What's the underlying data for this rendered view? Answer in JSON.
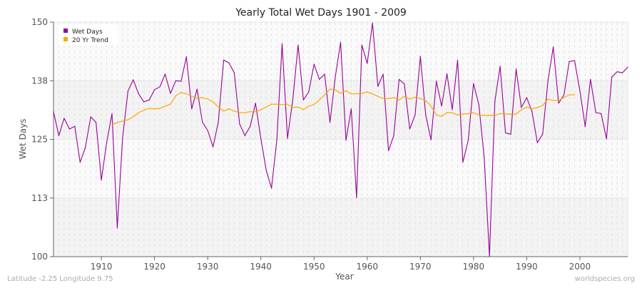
{
  "chart_data": {
    "type": "line",
    "title": "Yearly Total Wet Days 1901 - 2009",
    "xlabel": "Year",
    "ylabel": "Wet Days",
    "xlim": [
      1901,
      2009
    ],
    "ylim": [
      100,
      150
    ],
    "x_ticks": [
      1910,
      1920,
      1930,
      1940,
      1950,
      1960,
      1970,
      1980,
      1990,
      2000
    ],
    "y_ticks": [
      {
        "value": 100,
        "label": "100"
      },
      {
        "value": 112.5,
        "label": "113"
      },
      {
        "value": 125,
        "label": "125"
      },
      {
        "value": 137.5,
        "label": "138"
      },
      {
        "value": 150,
        "label": "150"
      }
    ],
    "grid": true,
    "legend": "top-left",
    "series": [
      {
        "name": "Wet Days",
        "color": "#990099",
        "start_year": 1901,
        "values": [
          130.9,
          125.8,
          129.5,
          127.2,
          127.8,
          120.1,
          123.3,
          129.8,
          128.6,
          116.3,
          124.3,
          130.5,
          106.1,
          125.4,
          135.3,
          137.7,
          134.7,
          133.0,
          133.4,
          135.6,
          136.2,
          138.9,
          134.8,
          137.5,
          137.4,
          142.6,
          131.5,
          135.7,
          128.7,
          126.9,
          123.4,
          128.7,
          141.9,
          141.3,
          139.2,
          128.3,
          125.8,
          127.8,
          132.7,
          125.2,
          118.5,
          114.6,
          124.9,
          145.4,
          125.2,
          133.4,
          145.1,
          133.4,
          135.1,
          141.0,
          137.8,
          138.9,
          128.6,
          138.3,
          145.7,
          124.8,
          131.5,
          112.6,
          145.1,
          141.2,
          149.8,
          136.3,
          138.9,
          122.6,
          125.8,
          137.8,
          136.8,
          127.2,
          130.2,
          142.7,
          130.2,
          124.9,
          137.4,
          132.1,
          139.0,
          131.3,
          141.9,
          120.1,
          124.8,
          136.9,
          132.4,
          121.1,
          100.0,
          133.1,
          140.6,
          126.4,
          126.1,
          140.0,
          131.8,
          133.9,
          130.9,
          124.3,
          126.1,
          137.5,
          144.7,
          132.7,
          134.5,
          141.6,
          141.8,
          135.4,
          127.7,
          137.8,
          130.7,
          130.5,
          125.1,
          138.3,
          139.4,
          139.2,
          140.4
        ]
      },
      {
        "name": "20 Yr Trend",
        "color": "#ffa500",
        "start_year": 1912,
        "values": [
          128.1,
          128.6,
          128.9,
          129.2,
          129.8,
          130.7,
          131.2,
          131.6,
          131.5,
          131.6,
          132.1,
          132.5,
          134.3,
          135.0,
          134.7,
          134.2,
          133.7,
          133.9,
          133.6,
          133.0,
          131.9,
          131.0,
          131.5,
          131.0,
          130.7,
          130.7,
          130.9,
          130.9,
          131.3,
          131.9,
          132.5,
          132.5,
          132.4,
          132.5,
          131.8,
          131.9,
          131.3,
          132.1,
          132.4,
          133.4,
          134.5,
          135.7,
          135.6,
          134.8,
          135.4,
          134.7,
          134.7,
          134.8,
          135.1,
          134.7,
          134.2,
          133.7,
          133.7,
          133.9,
          133.4,
          134.2,
          133.6,
          134.0,
          133.7,
          133.3,
          132.1,
          130.2,
          129.9,
          130.7,
          130.7,
          130.2,
          130.4,
          130.5,
          130.7,
          130.2,
          130.1,
          130.1,
          130.1,
          130.5,
          130.4,
          130.4,
          130.4,
          131.3,
          131.9,
          131.5,
          131.8,
          132.2,
          133.6,
          133.3,
          133.3,
          133.9,
          134.5,
          134.5
        ]
      }
    ]
  },
  "footer": {
    "location": "Latitude -2.25 Longitude 9.75",
    "source": "worldspecies.org"
  }
}
